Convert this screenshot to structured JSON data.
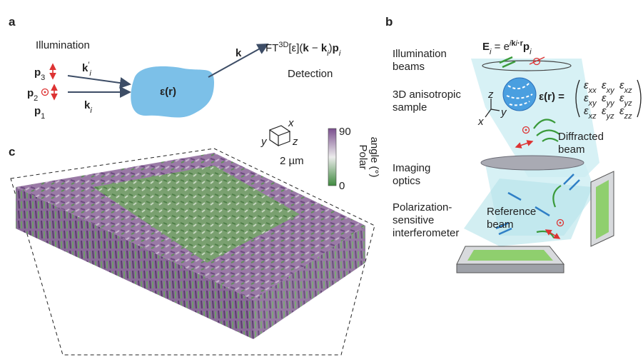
{
  "panel_a": {
    "label": "a",
    "illumination": "Illumination",
    "p3": [
      {
        "text": "p",
        "style": "bold"
      },
      {
        "text": "3",
        "style": "sub"
      }
    ],
    "k_prime": [
      {
        "text": "k",
        "style": "bold"
      },
      {
        "text": "′",
        "style": "sup"
      },
      {
        "text": "i",
        "style": "sub italic"
      }
    ],
    "p2": [
      {
        "text": "p",
        "style": "bold"
      },
      {
        "text": "2",
        "style": "sub"
      }
    ],
    "p1": [
      {
        "text": "p",
        "style": "bold"
      },
      {
        "text": "1",
        "style": "sub"
      }
    ],
    "k_i": [
      {
        "text": "k",
        "style": "bold"
      },
      {
        "text": "i",
        "style": "sub italic"
      }
    ],
    "sample": [
      {
        "text": "ε(",
        "style": "bold"
      },
      {
        "text": "r",
        "style": "bold"
      },
      {
        "text": ")",
        "style": "bold"
      }
    ],
    "k": [
      {
        "text": "k",
        "style": "bold"
      }
    ],
    "ft": [
      {
        "text": "FT",
        "style": ""
      },
      {
        "text": "3D",
        "style": "sup"
      },
      {
        "text": "[ε](",
        "style": ""
      },
      {
        "text": "k",
        "style": "bold"
      },
      {
        "text": " − ",
        "style": ""
      },
      {
        "text": "k",
        "style": "bold"
      },
      {
        "text": "i",
        "style": "sub italic"
      },
      {
        "text": ")",
        "style": ""
      },
      {
        "text": "p",
        "style": "bold"
      },
      {
        "text": "i",
        "style": "sub italic"
      }
    ],
    "detection": "Detection"
  },
  "panel_b": {
    "label": "b",
    "field": [
      {
        "text": "E",
        "style": "bold"
      },
      {
        "text": "i",
        "style": "sub italic"
      },
      {
        "text": " = e",
        "style": ""
      },
      {
        "text": "i",
        "style": "sup italic"
      },
      {
        "text": "k",
        "style": "sup bold"
      },
      {
        "text": "i",
        "style": "sup italic"
      },
      {
        "text": "·r",
        "style": "sup bold"
      },
      {
        "text": "p",
        "style": "bold"
      },
      {
        "text": "i",
        "style": "sub italic"
      }
    ],
    "illumination_beams": [
      "Illumination",
      "beams"
    ],
    "sample_label": [
      "3D anisotropic",
      "sample"
    ],
    "tensor_lhs": [
      {
        "text": "ε(",
        "style": "bold"
      },
      {
        "text": "r",
        "style": "bold"
      },
      {
        "text": ") =",
        "style": "bold"
      }
    ],
    "tensor": [
      [
        [
          {
            "text": "ε",
            "style": "italic"
          },
          {
            "text": "xx",
            "style": "sub italic"
          }
        ],
        [
          {
            "text": "ε",
            "style": "italic"
          },
          {
            "text": "xy",
            "style": "sub italic"
          }
        ],
        [
          {
            "text": "ε",
            "style": "italic"
          },
          {
            "text": "xz",
            "style": "sub italic"
          }
        ]
      ],
      [
        [
          {
            "text": "ε",
            "style": "italic"
          },
          {
            "text": "xy",
            "style": "sub italic"
          }
        ],
        [
          {
            "text": "ε",
            "style": "italic"
          },
          {
            "text": "yy",
            "style": "sub italic"
          }
        ],
        [
          {
            "text": "ε",
            "style": "italic"
          },
          {
            "text": "yz",
            "style": "sub italic"
          }
        ]
      ],
      [
        [
          {
            "text": "ε",
            "style": "italic"
          },
          {
            "text": "xz",
            "style": "sub italic"
          }
        ],
        [
          {
            "text": "ε",
            "style": "italic"
          },
          {
            "text": "yz",
            "style": "sub italic"
          }
        ],
        [
          {
            "text": "ε",
            "style": "italic"
          },
          {
            "text": "zz",
            "style": "sub italic"
          }
        ]
      ]
    ],
    "axes": {
      "z": "z",
      "y": "y",
      "x": "x"
    },
    "diffracted_beam": [
      "Diffracted",
      "beam"
    ],
    "imaging_optics": [
      "Imaging",
      "optics"
    ],
    "interferometer": [
      "Polarization-",
      "sensitive",
      "interferometer"
    ],
    "reference_beam": [
      "Reference",
      "beam"
    ]
  },
  "panel_c": {
    "label": "c",
    "axes": {
      "x": "x",
      "y": "y",
      "z": "z"
    },
    "scale_bar": "2 µm",
    "colorbar": {
      "max": 90,
      "min": 0,
      "title": [
        "Polar",
        "angle (°)"
      ]
    }
  }
}
